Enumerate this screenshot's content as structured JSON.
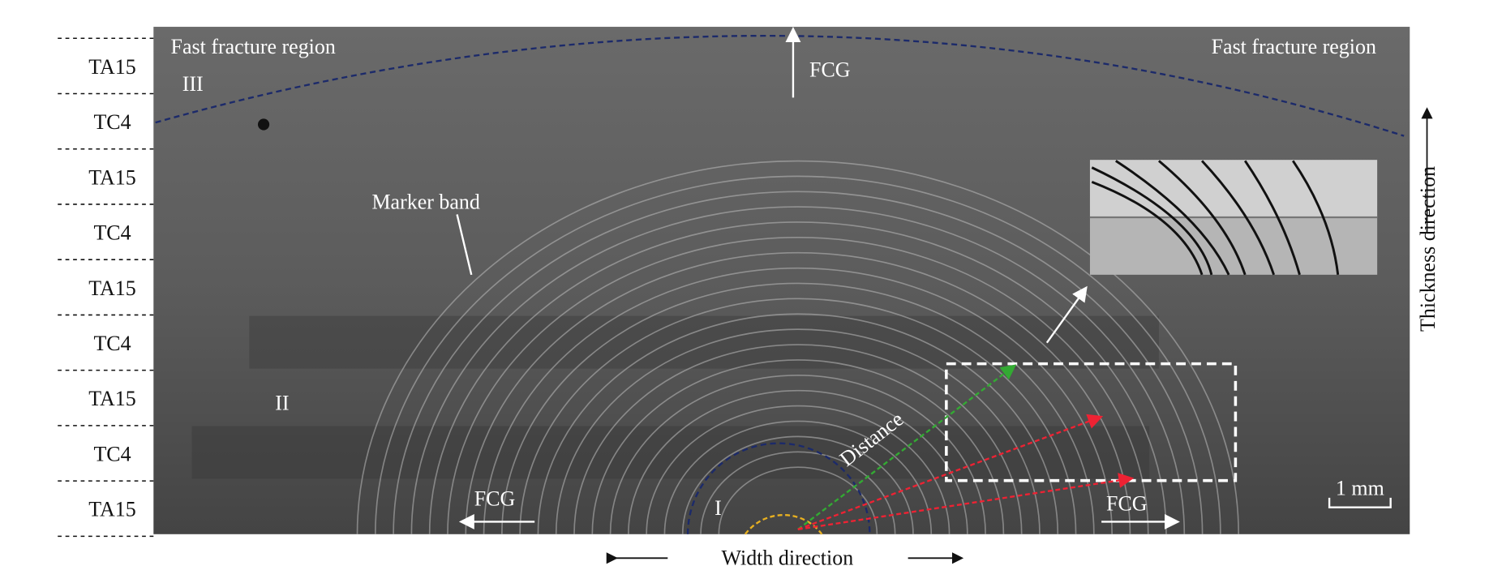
{
  "layers": [
    "TA15",
    "TC4",
    "TA15",
    "TC4",
    "TA15",
    "TC4",
    "TA15",
    "TC4",
    "TA15"
  ],
  "labels": {
    "fast_left": "Fast fracture region",
    "fast_right": "Fast fracture region",
    "region_1": "I",
    "region_2": "II",
    "region_3": "III",
    "fcg_top": "FCG",
    "fcg_left": "FCG",
    "fcg_right": "FCG",
    "marker_band": "Marker band",
    "distance": "Distance",
    "scale_bar": "1 mm",
    "width_direction": "Width direction",
    "thickness_direction": "Thickness direction"
  }
}
